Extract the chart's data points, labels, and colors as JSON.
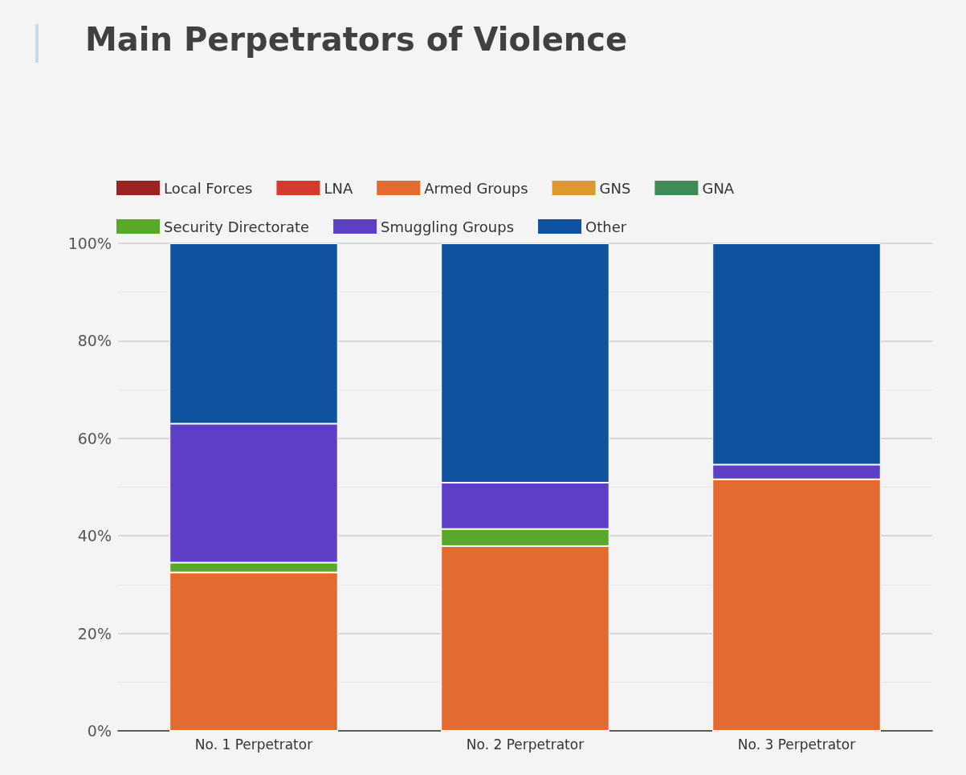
{
  "chart_data": {
    "type": "bar",
    "title": "Main Perpetrators of Violence",
    "stacked": true,
    "categories": [
      "No. 1 Perpetrator",
      "No. 2 Perpetrator",
      "No. 3 Perpetrator"
    ],
    "series": [
      {
        "name": "Local Forces",
        "color": "#9b2420",
        "values": [
          0,
          0,
          0
        ]
      },
      {
        "name": "LNA",
        "color": "#d63a2f",
        "values": [
          0,
          0,
          0
        ]
      },
      {
        "name": "Armed Groups",
        "color": "#e36a30",
        "values": [
          32.5,
          37.9,
          51.6
        ]
      },
      {
        "name": "GNS",
        "color": "#dc9a2e",
        "values": [
          0,
          0,
          0
        ]
      },
      {
        "name": "GNA",
        "color": "#3f8a55",
        "values": [
          0,
          0,
          0
        ]
      },
      {
        "name": "Security Directorate",
        "color": "#5aa829",
        "values": [
          2.0,
          3.5,
          0
        ]
      },
      {
        "name": "Smuggling Groups",
        "color": "#5d3fc5",
        "values": [
          28.5,
          9.5,
          3.0
        ]
      },
      {
        "name": "Other",
        "color": "#0f529e",
        "values": [
          37.0,
          49.1,
          45.4
        ]
      }
    ],
    "ylim": [
      0,
      100
    ],
    "yticks": [
      {
        "value": 0,
        "label": "0%"
      },
      {
        "value": 20,
        "label": "20%"
      },
      {
        "value": 40,
        "label": "40%"
      },
      {
        "value": 60,
        "label": "60%"
      },
      {
        "value": 80,
        "label": "80%"
      },
      {
        "value": 100,
        "label": "100%"
      }
    ],
    "grid": "y",
    "legend": "top"
  }
}
